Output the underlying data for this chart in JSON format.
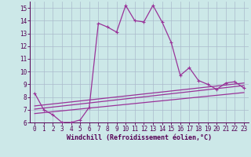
{
  "xlabel": "Windchill (Refroidissement éolien,°C)",
  "bg_color": "#cce8e8",
  "grid_color": "#aabbcc",
  "line_color": "#993399",
  "xlim": [
    -0.5,
    23.5
  ],
  "ylim": [
    6,
    15.5
  ],
  "xticks": [
    0,
    1,
    2,
    3,
    4,
    5,
    6,
    7,
    8,
    9,
    10,
    11,
    12,
    13,
    14,
    15,
    16,
    17,
    18,
    19,
    20,
    21,
    22,
    23
  ],
  "yticks": [
    6,
    7,
    8,
    9,
    10,
    11,
    12,
    13,
    14,
    15
  ],
  "main_x": [
    0,
    1,
    2,
    3,
    4,
    5,
    6,
    7,
    8,
    9,
    10,
    11,
    12,
    13,
    14,
    15,
    16,
    17,
    18,
    19,
    20,
    21,
    22,
    23
  ],
  "main_y": [
    8.3,
    7.0,
    6.6,
    6.0,
    6.0,
    6.2,
    7.2,
    13.8,
    13.5,
    13.1,
    15.2,
    14.0,
    13.9,
    15.2,
    13.9,
    12.3,
    9.7,
    10.3,
    9.3,
    9.0,
    8.6,
    9.1,
    9.2,
    8.7
  ],
  "line2_x": [
    0,
    23
  ],
  "line2_y": [
    7.05,
    8.9
  ],
  "line3_x": [
    0,
    23
  ],
  "line3_y": [
    7.3,
    9.1
  ],
  "line4_x": [
    0,
    23
  ],
  "line4_y": [
    6.7,
    8.35
  ],
  "markersize": 2.5,
  "linewidth": 0.9,
  "tick_fontsize": 5.5,
  "xlabel_fontsize": 6.0
}
